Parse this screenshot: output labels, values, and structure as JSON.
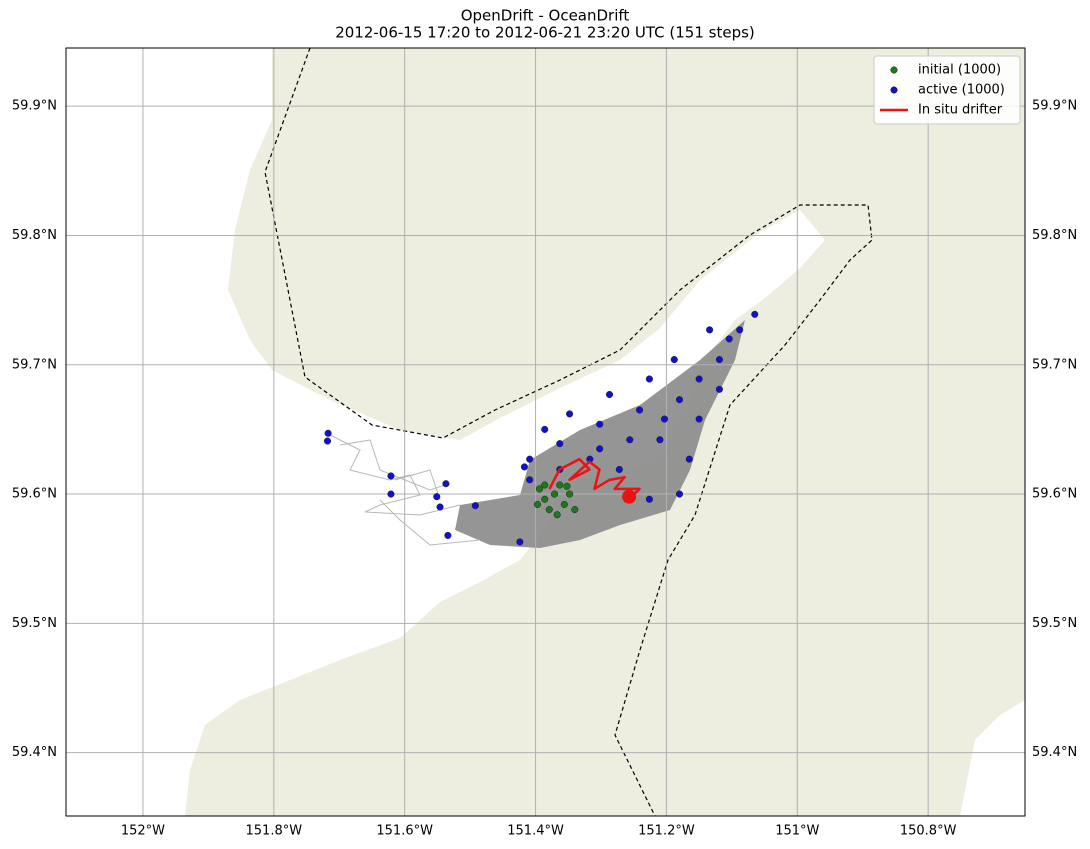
{
  "chart_data": {
    "type": "map",
    "title": "OpenDrift - OceanDrift",
    "subtitle": "2012-06-15 17:20 to 2012-06-21 23:20 UTC (151 steps)",
    "xlim": [
      -152.1176,
      -150.652
    ],
    "ylim": [
      59.351,
      59.945
    ],
    "xticks": [
      {
        "value": -152,
        "label": "152°W"
      },
      {
        "value": -151.8,
        "label": "151.8°W"
      },
      {
        "value": -151.6,
        "label": "151.6°W"
      },
      {
        "value": -151.4,
        "label": "151.4°W"
      },
      {
        "value": -151.2,
        "label": "151.2°W"
      },
      {
        "value": -151,
        "label": "151°W"
      },
      {
        "value": -150.8,
        "label": "150.8°W"
      }
    ],
    "yticks": [
      {
        "value": 59.4,
        "label": "59.4°N"
      },
      {
        "value": 59.5,
        "label": "59.5°N"
      },
      {
        "value": 59.6,
        "label": "59.6°N"
      },
      {
        "value": 59.7,
        "label": "59.7°N"
      },
      {
        "value": 59.8,
        "label": "59.8°N"
      },
      {
        "value": 59.9,
        "label": "59.9°N"
      }
    ],
    "grid": true,
    "legend": "upper right",
    "series": [
      {
        "name": "initial (1000)",
        "kind": "scatter",
        "color": "#1a7a1a",
        "x": [
          -151.394,
          -151.386,
          -151.371,
          -151.356,
          -151.379,
          -151.363,
          -151.348,
          -151.386,
          -151.34,
          -151.397,
          -151.367,
          -151.352
        ],
        "y": [
          59.604,
          59.596,
          59.6,
          59.592,
          59.588,
          59.607,
          59.6,
          59.607,
          59.588,
          59.592,
          59.584,
          59.606
        ]
      },
      {
        "name": "active (1000)",
        "kind": "scatter",
        "color": "#1010d0",
        "x": [
          -151.717,
          -151.718,
          -151.621,
          -151.621,
          -151.551,
          -151.546,
          -151.537,
          -151.534,
          -151.492,
          -151.424,
          -151.409,
          -151.363,
          -151.302,
          -151.241,
          -151.21,
          -151.18,
          -151.15,
          -151.119,
          -151.088,
          -151.065,
          -151.104,
          -151.15,
          -151.165,
          -151.18,
          -151.226,
          -151.272,
          -151.317,
          -151.363,
          -151.409,
          -151.348,
          -151.287,
          -151.226,
          -151.188,
          -151.134,
          -151.119,
          -151.203,
          -151.256,
          -151.302,
          -151.386,
          -151.417
        ],
        "y": [
          59.647,
          59.641,
          59.614,
          59.6,
          59.598,
          59.59,
          59.608,
          59.568,
          59.591,
          59.563,
          59.627,
          59.639,
          59.654,
          59.665,
          59.642,
          59.673,
          59.689,
          59.704,
          59.727,
          59.739,
          59.72,
          59.658,
          59.627,
          59.6,
          59.596,
          59.619,
          59.627,
          59.619,
          59.611,
          59.662,
          59.677,
          59.689,
          59.704,
          59.727,
          59.681,
          59.658,
          59.642,
          59.635,
          59.65,
          59.621
        ]
      },
      {
        "name": "In situ drifter",
        "kind": "line",
        "color": "#ee1111",
        "x": [
          -151.3787,
          -151.3634,
          -151.3329,
          -151.3176,
          -151.3481,
          -151.3176,
          -151.3023,
          -151.31,
          -151.287,
          -151.264,
          -151.279,
          -151.241,
          -151.249,
          -151.257
        ],
        "y": [
          59.604,
          59.619,
          59.627,
          59.619,
          59.611,
          59.625,
          59.619,
          59.604,
          59.611,
          59.613,
          59.604,
          59.604,
          59.6,
          59.598
        ]
      }
    ]
  }
}
